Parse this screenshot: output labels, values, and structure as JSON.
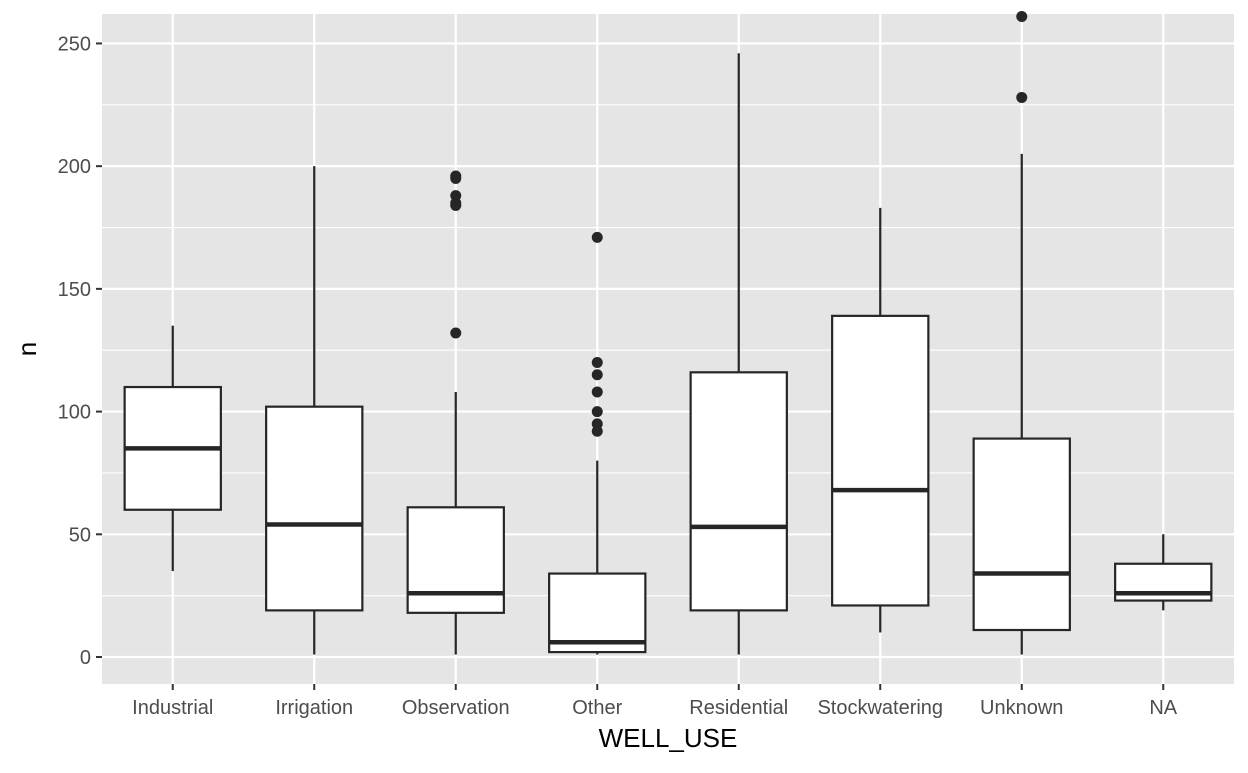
{
  "chart_data": {
    "type": "boxplot",
    "title": "",
    "xlabel": "WELL_USE",
    "ylabel": "n",
    "ylim": [
      -11,
      262
    ],
    "yticks": [
      0,
      50,
      100,
      150,
      200,
      250
    ],
    "grid": true,
    "legend": "none",
    "colors": {
      "panel_background": "#e5e5e5",
      "grid_line": "#ffffff",
      "box_fill": "#ffffff",
      "box_stroke": "#262626",
      "tick_label": "#4d4d4d",
      "axis_title": "#000000"
    },
    "categories": [
      "Industrial",
      "Irrigation",
      "Observation",
      "Other",
      "Residential",
      "Stockwatering",
      "Unknown",
      "NA"
    ],
    "boxes": [
      {
        "category": "Industrial",
        "whisker_low": 35,
        "q1": 60,
        "median": 85,
        "q3": 110,
        "whisker_high": 135,
        "outliers": []
      },
      {
        "category": "Irrigation",
        "whisker_low": 1,
        "q1": 19,
        "median": 54,
        "q3": 102,
        "whisker_high": 200,
        "outliers": []
      },
      {
        "category": "Observation",
        "whisker_low": 1,
        "q1": 18,
        "median": 26,
        "q3": 61,
        "whisker_high": 108,
        "outliers": [
          132,
          184,
          185,
          188,
          195,
          196
        ]
      },
      {
        "category": "Other",
        "whisker_low": 1,
        "q1": 2,
        "median": 6,
        "q3": 34,
        "whisker_high": 80,
        "outliers": [
          92,
          95,
          100,
          108,
          115,
          120,
          171
        ]
      },
      {
        "category": "Residential",
        "whisker_low": 1,
        "q1": 19,
        "median": 53,
        "q3": 116,
        "whisker_high": 246,
        "outliers": []
      },
      {
        "category": "Stockwatering",
        "whisker_low": 10,
        "q1": 21,
        "median": 68,
        "q3": 139,
        "whisker_high": 183,
        "outliers": []
      },
      {
        "category": "Unknown",
        "whisker_low": 1,
        "q1": 11,
        "median": 34,
        "q3": 89,
        "whisker_high": 205,
        "outliers": [
          228,
          261
        ]
      },
      {
        "category": "NA",
        "whisker_low": 19,
        "q1": 23,
        "median": 26,
        "q3": 38,
        "whisker_high": 50,
        "outliers": []
      }
    ]
  }
}
